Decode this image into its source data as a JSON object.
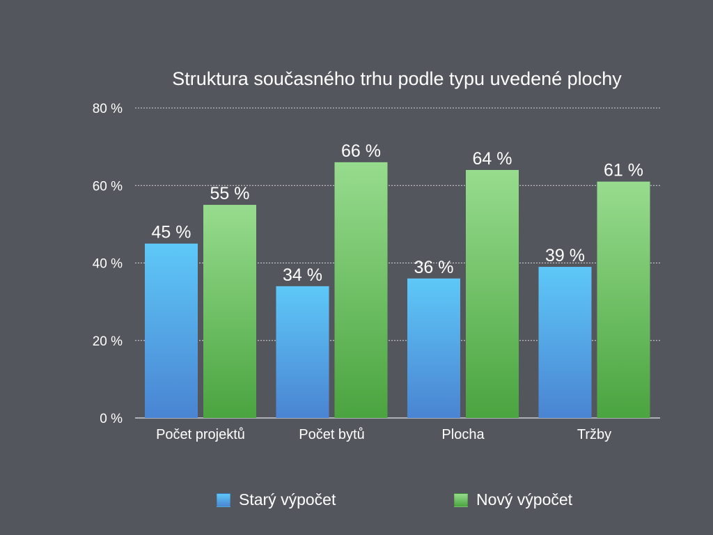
{
  "chart_data": {
    "type": "bar",
    "title": "Struktura současného trhu podle typu uvedené plochy",
    "categories": [
      "Počet projektů",
      "Počet bytů",
      "Plocha",
      "Tržby"
    ],
    "series": [
      {
        "name": "Starý výpočet",
        "values": [
          45,
          34,
          36,
          39
        ],
        "data_labels": [
          "45 %",
          "34 %",
          "36 %",
          "39 %"
        ]
      },
      {
        "name": "Nový výpočet",
        "values": [
          55,
          66,
          64,
          61
        ],
        "data_labels": [
          "55 %",
          "66 %",
          "64 %",
          "61 %"
        ]
      }
    ],
    "ylim": [
      0,
      80
    ],
    "yticks": [
      0,
      20,
      40,
      60,
      80
    ],
    "ytick_labels": [
      "0 %",
      "20 %",
      "40 %",
      "60 %",
      "80 %"
    ],
    "grid": true,
    "legend_position": "bottom",
    "colors": {
      "Starý výpočet": {
        "top": "#5ec8f8",
        "bottom": "#4a84d2"
      },
      "Nový výpočet": {
        "top": "#97dc8e",
        "bottom": "#4aa43f"
      }
    }
  }
}
